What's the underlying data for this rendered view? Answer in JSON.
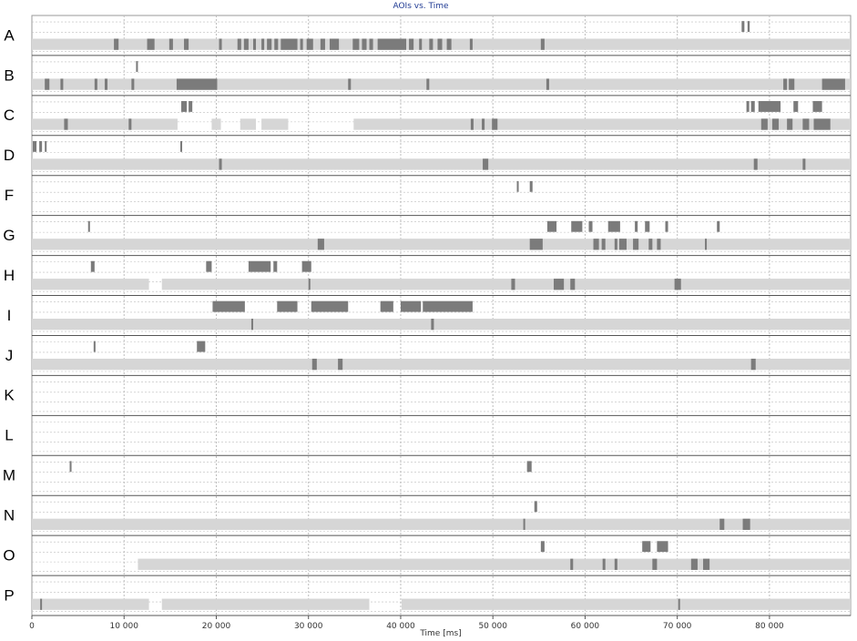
{
  "chart_data": {
    "type": "timeline",
    "title": "AOIs vs. Time",
    "xlabel": "Time [ms]",
    "xlim": [
      0,
      88800
    ],
    "x_ticks": [
      0,
      10000,
      20000,
      30000,
      40000,
      50000,
      60000,
      70000,
      80000
    ],
    "x_tick_labels": [
      "0",
      "10 000",
      "20 000",
      "30 000",
      "40 000",
      "50 000",
      "60 000",
      "70 000",
      "80 000"
    ],
    "grid": true,
    "colors": {
      "gaze": "#d6d6d6",
      "event": "#7b7b7b",
      "separator": "#555555",
      "grid": "#bdbdbd",
      "title": "#1f3a93"
    },
    "rows": [
      {
        "label": "A",
        "upper": [
          [
            76980,
            77280
          ],
          [
            77620,
            77850
          ]
        ],
        "lower_bars": [
          [
            0,
            88800
          ]
        ],
        "lower_events": [
          [
            8900,
            9400
          ],
          [
            12500,
            13300
          ],
          [
            14900,
            15300
          ],
          [
            16500,
            17000
          ],
          [
            20300,
            20600
          ],
          [
            22300,
            22700
          ],
          [
            23000,
            23500
          ],
          [
            24000,
            24300
          ],
          [
            24900,
            25200
          ],
          [
            25500,
            26000
          ],
          [
            26300,
            26700
          ],
          [
            27000,
            28800
          ],
          [
            29100,
            29400
          ],
          [
            29800,
            30500
          ],
          [
            31300,
            31800
          ],
          [
            32300,
            33300
          ],
          [
            34800,
            35500
          ],
          [
            35800,
            36300
          ],
          [
            36600,
            37000
          ],
          [
            37500,
            40600
          ],
          [
            40900,
            41400
          ],
          [
            42000,
            42300
          ],
          [
            43100,
            43500
          ],
          [
            44000,
            44500
          ],
          [
            45000,
            45500
          ],
          [
            47500,
            47800
          ],
          [
            55200,
            55600
          ]
        ]
      },
      {
        "label": "B",
        "upper": [
          [
            11300,
            11500
          ]
        ],
        "lower_bars": [
          [
            0,
            88800
          ]
        ],
        "lower_events": [
          [
            1400,
            1900
          ],
          [
            3100,
            3400
          ],
          [
            6800,
            7100
          ],
          [
            7900,
            8200
          ],
          [
            10800,
            11100
          ],
          [
            15700,
            20100
          ],
          [
            34300,
            34600
          ],
          [
            42800,
            43100
          ],
          [
            55800,
            56100
          ],
          [
            81500,
            81900
          ],
          [
            82100,
            82700
          ],
          [
            85700,
            88200
          ]
        ]
      },
      {
        "label": "C",
        "upper": [
          [
            16200,
            16800
          ],
          [
            17000,
            17400
          ],
          [
            77500,
            77800
          ],
          [
            78000,
            78400
          ],
          [
            78800,
            81200
          ],
          [
            82600,
            83100
          ],
          [
            84700,
            85700
          ]
        ],
        "lower_bars": [
          [
            0,
            15800
          ],
          [
            19500,
            20500
          ],
          [
            22600,
            24300
          ],
          [
            24900,
            27800
          ],
          [
            34900,
            88800
          ]
        ],
        "lower_events": [
          [
            3500,
            3900
          ],
          [
            10500,
            10800
          ],
          [
            47600,
            47900
          ],
          [
            48800,
            49100
          ],
          [
            49900,
            50500
          ],
          [
            79100,
            79800
          ],
          [
            80300,
            81000
          ],
          [
            81900,
            82500
          ],
          [
            83600,
            84300
          ],
          [
            84800,
            86600
          ]
        ]
      },
      {
        "label": "D",
        "upper": [
          [
            100,
            500
          ],
          [
            800,
            1100
          ],
          [
            1400,
            1600
          ],
          [
            16100,
            16300
          ]
        ],
        "lower_bars": [
          [
            0,
            88800
          ]
        ],
        "lower_events": [
          [
            20300,
            20600
          ],
          [
            48900,
            49500
          ],
          [
            78300,
            78700
          ],
          [
            83600,
            83900
          ]
        ]
      },
      {
        "label": "F",
        "upper": [
          [
            52600,
            52800
          ],
          [
            54000,
            54300
          ]
        ],
        "lower_bars": [],
        "lower_events": []
      },
      {
        "label": "G",
        "upper": [
          [
            6100,
            6300
          ],
          [
            55900,
            56900
          ],
          [
            58500,
            59700
          ],
          [
            60400,
            60800
          ],
          [
            62500,
            63800
          ],
          [
            65400,
            65700
          ],
          [
            66500,
            67000
          ],
          [
            68700,
            69000
          ],
          [
            74300,
            74600
          ]
        ],
        "lower_bars": [
          [
            0,
            88800
          ]
        ],
        "lower_events": [
          [
            31000,
            31700
          ],
          [
            54000,
            55400
          ],
          [
            60900,
            61500
          ],
          [
            61800,
            62200
          ],
          [
            63200,
            63500
          ],
          [
            63700,
            64500
          ],
          [
            65200,
            65800
          ],
          [
            66900,
            67300
          ],
          [
            67800,
            68200
          ],
          [
            73000,
            73200
          ]
        ]
      },
      {
        "label": "H",
        "upper": [
          [
            6400,
            6800
          ],
          [
            18900,
            19500
          ],
          [
            23500,
            25900
          ],
          [
            26200,
            26600
          ],
          [
            29300,
            30300
          ]
        ],
        "lower_bars": [
          [
            0,
            12700
          ],
          [
            14100,
            88800
          ]
        ],
        "lower_events": [
          [
            30000,
            30200
          ],
          [
            52000,
            52400
          ],
          [
            56600,
            57700
          ],
          [
            58400,
            58900
          ],
          [
            69700,
            70400
          ]
        ]
      },
      {
        "label": "I",
        "upper": [
          [
            19600,
            23100
          ],
          [
            26600,
            28800
          ],
          [
            30300,
            34300
          ],
          [
            37800,
            39200
          ],
          [
            40000,
            42200
          ],
          [
            42400,
            47800
          ]
        ],
        "lower_bars": [
          [
            0,
            88800
          ]
        ],
        "lower_events": [
          [
            23800,
            24000
          ],
          [
            43300,
            43600
          ]
        ]
      },
      {
        "label": "J",
        "upper": [
          [
            6700,
            6900
          ],
          [
            17900,
            18800
          ]
        ],
        "lower_bars": [
          [
            0,
            88800
          ]
        ],
        "lower_events": [
          [
            30400,
            30900
          ],
          [
            33200,
            33700
          ],
          [
            78000,
            78500
          ]
        ]
      },
      {
        "label": "K",
        "upper": [],
        "lower_bars": [],
        "lower_events": []
      },
      {
        "label": "L",
        "upper": [],
        "lower_bars": [],
        "lower_events": []
      },
      {
        "label": "M",
        "upper": [
          [
            4100,
            4300
          ],
          [
            53700,
            54200
          ]
        ],
        "lower_bars": [],
        "lower_events": []
      },
      {
        "label": "N",
        "upper": [
          [
            54500,
            54800
          ]
        ],
        "lower_bars": [
          [
            0,
            88800
          ]
        ],
        "lower_events": [
          [
            53300,
            53500
          ],
          [
            74600,
            75100
          ],
          [
            77100,
            77900
          ]
        ]
      },
      {
        "label": "O",
        "upper": [
          [
            55200,
            55600
          ],
          [
            66200,
            67100
          ],
          [
            67800,
            69000
          ]
        ],
        "lower_bars": [
          [
            11500,
            88800
          ]
        ],
        "lower_events": [
          [
            58400,
            58700
          ],
          [
            61900,
            62200
          ],
          [
            63200,
            63500
          ],
          [
            67300,
            67800
          ],
          [
            71500,
            72200
          ],
          [
            72800,
            73500
          ]
        ]
      },
      {
        "label": "P",
        "upper": [],
        "lower_bars": [
          [
            0,
            12700
          ],
          [
            14100,
            36600
          ],
          [
            40100,
            88800
          ]
        ],
        "lower_events": [
          [
            900,
            1100
          ],
          [
            70100,
            70300
          ]
        ]
      }
    ]
  }
}
